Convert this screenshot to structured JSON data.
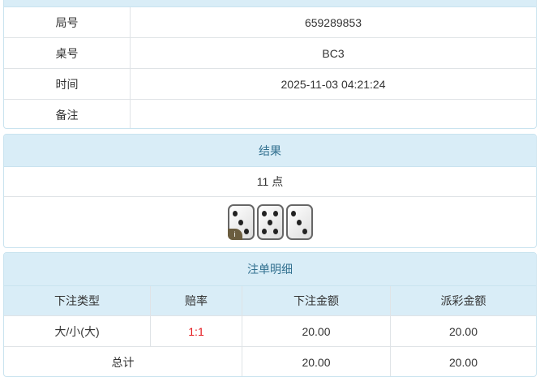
{
  "info": {
    "rows": [
      {
        "label": "局号",
        "value": "659289853"
      },
      {
        "label": "桌号",
        "value": "BC3"
      },
      {
        "label": "时间",
        "value": "2025-11-03 04:21:24"
      },
      {
        "label": "备注",
        "value": ""
      }
    ]
  },
  "result": {
    "title": "结果",
    "points": "11 点",
    "dice": [
      3,
      5,
      3
    ],
    "info_badge": "i"
  },
  "bets": {
    "title": "注单明细",
    "columns": [
      "下注类型",
      "赔率",
      "下注金额",
      "派彩金额"
    ],
    "rows": [
      {
        "type": "大/小(大)",
        "odds": "1:1",
        "amount": "20.00",
        "payout": "20.00"
      }
    ],
    "total": {
      "label": "总计",
      "amount": "20.00",
      "payout": "20.00"
    }
  },
  "colors": {
    "header_bg": "#d9edf7",
    "header_text": "#31708f",
    "odds": "#e4161b"
  }
}
